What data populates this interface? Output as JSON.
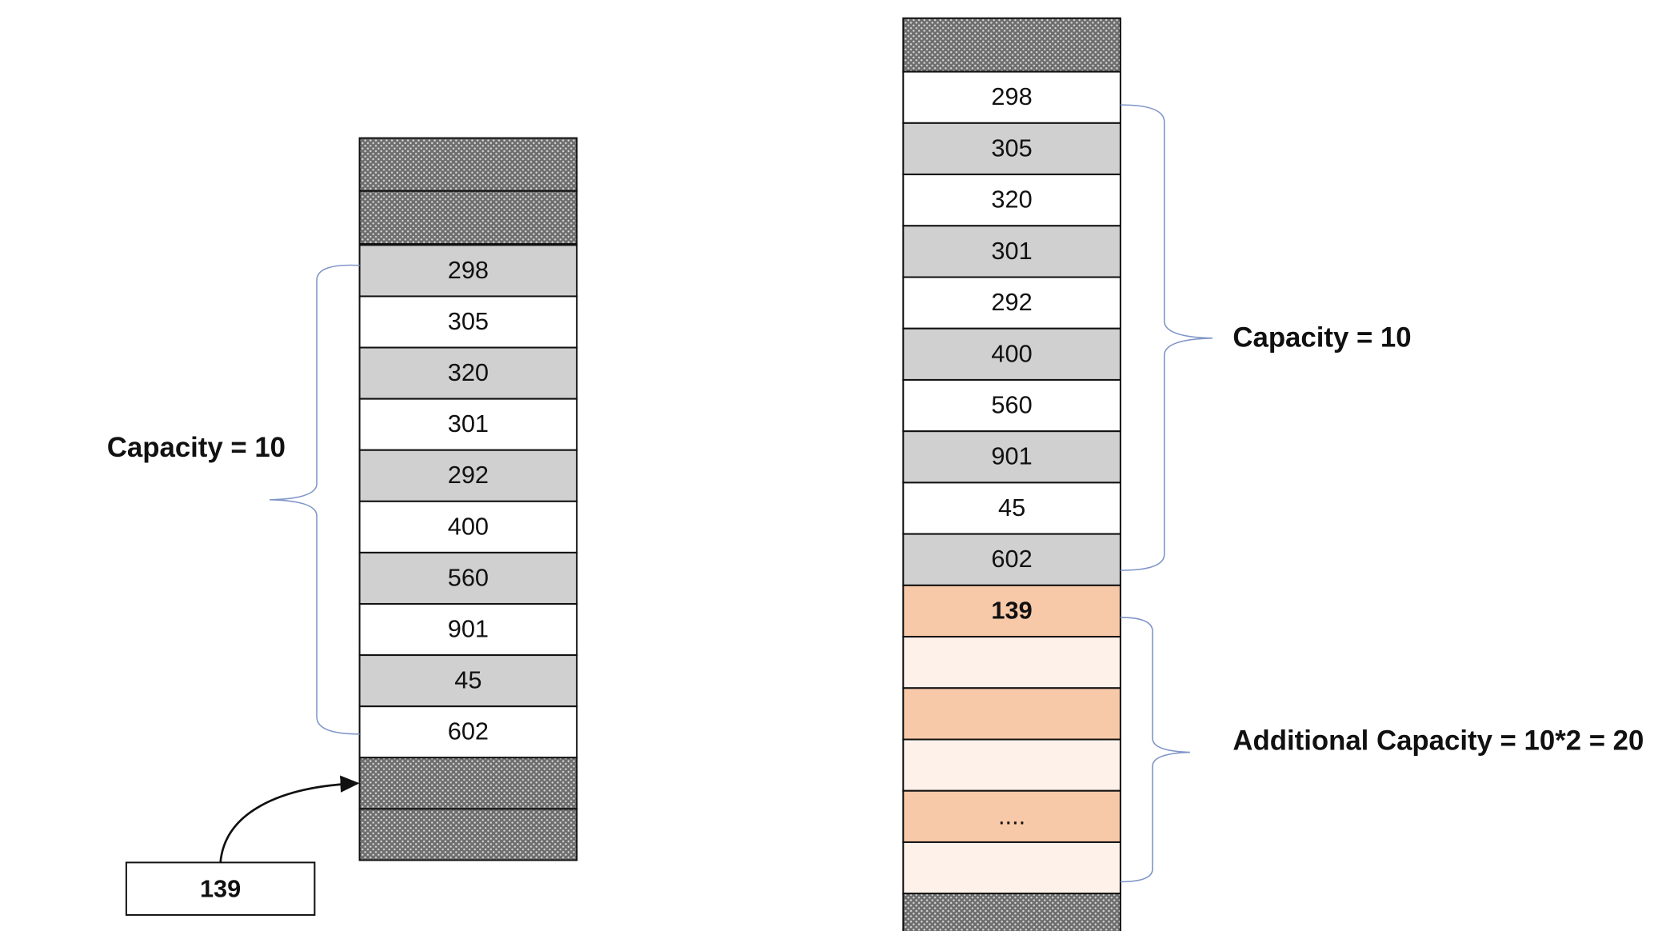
{
  "left_column": {
    "values": [
      "298",
      "305",
      "320",
      "301",
      "292",
      "400",
      "560",
      "901",
      "45",
      "602"
    ],
    "capacity_label": "Capacity = 10",
    "new_item": "139"
  },
  "right_column": {
    "values": [
      "298",
      "305",
      "320",
      "301",
      "292",
      "400",
      "560",
      "901",
      "45",
      "602"
    ],
    "new_values": [
      "139",
      "...."
    ],
    "capacity_label": "Capacity = 10",
    "additional_label": "Additional Capacity = 10*2 = 20"
  }
}
